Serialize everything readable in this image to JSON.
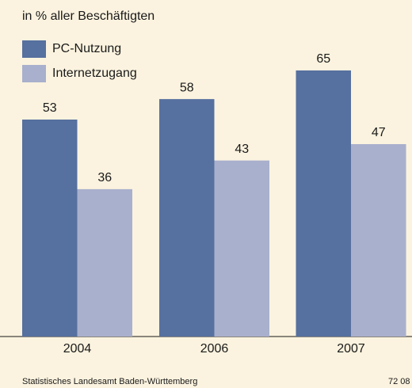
{
  "chart_data": {
    "type": "bar",
    "subtitle": "in % aller Beschäftigten",
    "categories": [
      "2004",
      "2006",
      "2007"
    ],
    "series": [
      {
        "name": "PC-Nutzung",
        "color": "#56709f",
        "values": [
          53,
          58,
          65
        ]
      },
      {
        "name": "Internetzugang",
        "color": "#a9b0cd",
        "values": [
          36,
          43,
          47
        ]
      }
    ],
    "source": "Statistisches Landesamt Baden-Württemberg",
    "code": "72 08"
  }
}
